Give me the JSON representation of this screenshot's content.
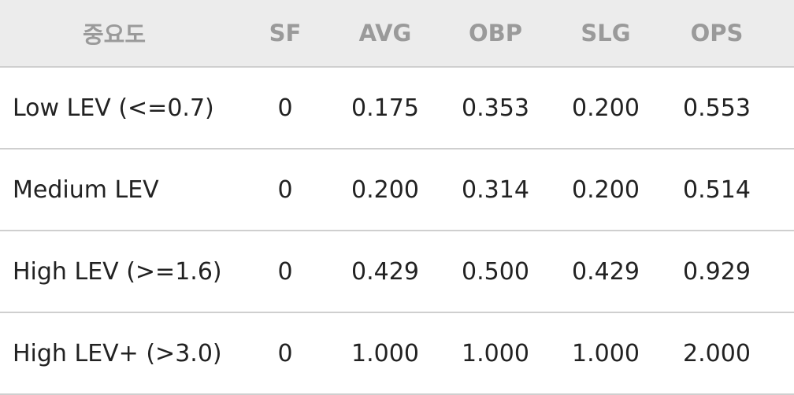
{
  "table": {
    "header": [
      "중요도",
      "SF",
      "AVG",
      "OBP",
      "SLG",
      "OPS"
    ],
    "rows": [
      [
        "Low LEV (<=0.7)",
        "0",
        "0.175",
        "0.353",
        "0.200",
        "0.553"
      ],
      [
        "Medium LEV",
        "0",
        "0.200",
        "0.314",
        "0.200",
        "0.514"
      ],
      [
        "High LEV (>=1.6)",
        "0",
        "0.429",
        "0.500",
        "0.429",
        "0.929"
      ],
      [
        "High LEV+ (>3.0)",
        "0",
        "1.000",
        "1.000",
        "1.000",
        "2.000"
      ]
    ]
  }
}
